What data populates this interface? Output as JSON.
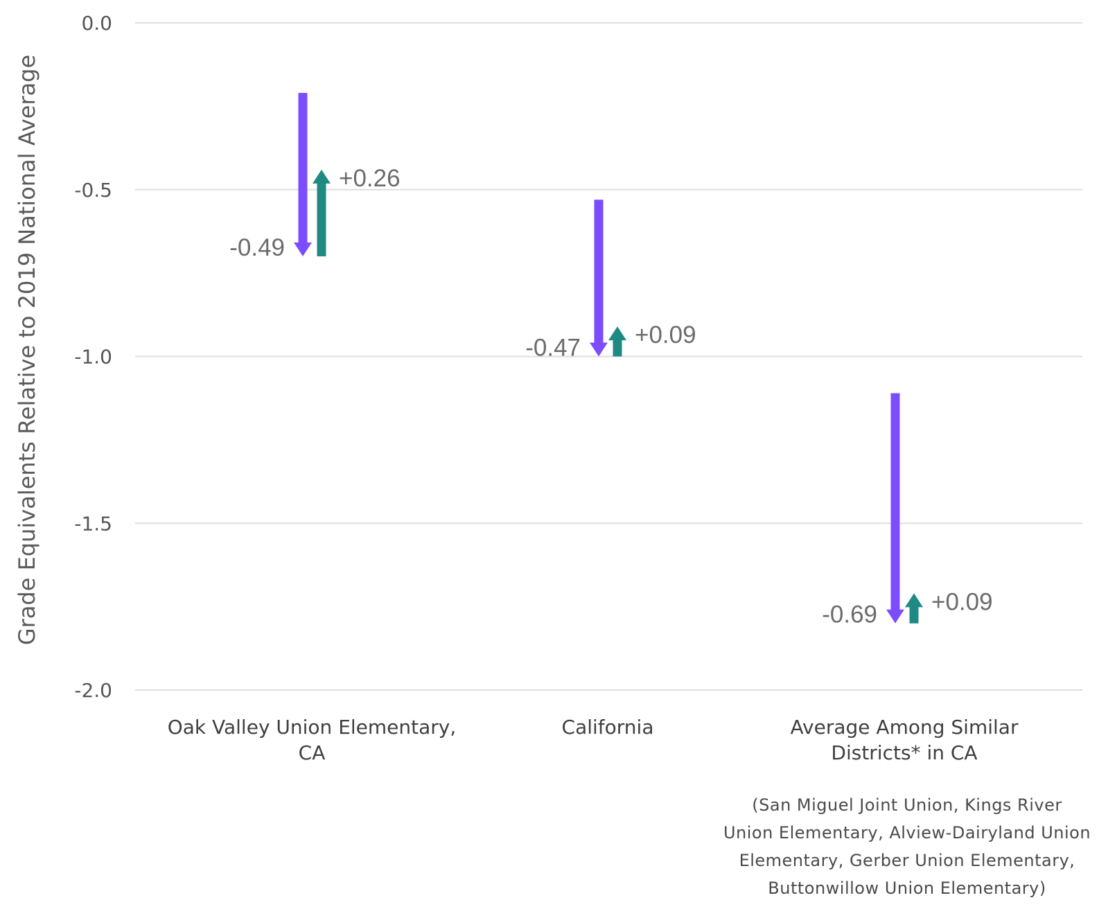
{
  "chart_data": {
    "type": "arrow",
    "ylabel": "Grade Equivalents Relative to 2019 National Average",
    "ylim": [
      -2.0,
      0.0
    ],
    "yticks": [
      "0.0",
      "-0.5",
      "-1.0",
      "-1.5",
      "-2.0"
    ],
    "grid": true,
    "categories": [
      {
        "label_lines": [
          "Oak Valley Union Elementary,",
          "CA"
        ],
        "note_lines": [],
        "decline": {
          "start": -0.21,
          "end": -0.7,
          "label": "-0.49",
          "color": "#7c4dff"
        },
        "recovery": {
          "start": -0.7,
          "end": -0.44,
          "label": "+0.26",
          "color": "#1f8a84"
        }
      },
      {
        "label_lines": [
          "California"
        ],
        "note_lines": [],
        "decline": {
          "start": -0.53,
          "end": -1.0,
          "label": "-0.47",
          "color": "#7c4dff"
        },
        "recovery": {
          "start": -1.0,
          "end": -0.91,
          "label": "+0.09",
          "color": "#1f8a84"
        }
      },
      {
        "label_lines": [
          "Average Among Similar",
          "Districts* in CA"
        ],
        "note_lines": [
          "(San Miguel Joint Union, Kings River",
          "Union Elementary, Alview-Dairyland Union",
          "Elementary, Gerber Union Elementary,",
          "Buttonwillow Union Elementary)"
        ],
        "decline": {
          "start": -1.11,
          "end": -1.8,
          "label": "-0.69",
          "color": "#7c4dff"
        },
        "recovery": {
          "start": -1.8,
          "end": -1.71,
          "label": "+0.09",
          "color": "#1f8a84"
        }
      }
    ]
  }
}
